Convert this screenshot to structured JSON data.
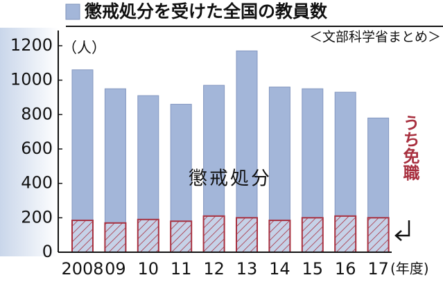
{
  "chart_data": {
    "type": "bar",
    "title": "懲戒処分を受けた全国の教員数",
    "source": "＜文部科学省まとめ＞",
    "y_unit": "（人）",
    "x_unit": "(年度)",
    "categories": [
      "2008",
      "09",
      "10",
      "11",
      "12",
      "13",
      "14",
      "15",
      "16",
      "17"
    ],
    "series": [
      {
        "name": "懲戒処分",
        "color": "#a3b6d9",
        "values": [
          1060,
          950,
          910,
          860,
          970,
          1170,
          960,
          950,
          930,
          780
        ]
      },
      {
        "name": "うち免職",
        "color": "#a8303f",
        "values": [
          185,
          170,
          190,
          180,
          210,
          200,
          185,
          200,
          210,
          200
        ]
      }
    ],
    "ylim": [
      0,
      1200
    ],
    "yticks": [
      0,
      200,
      400,
      600,
      800,
      1000,
      1200
    ]
  }
}
